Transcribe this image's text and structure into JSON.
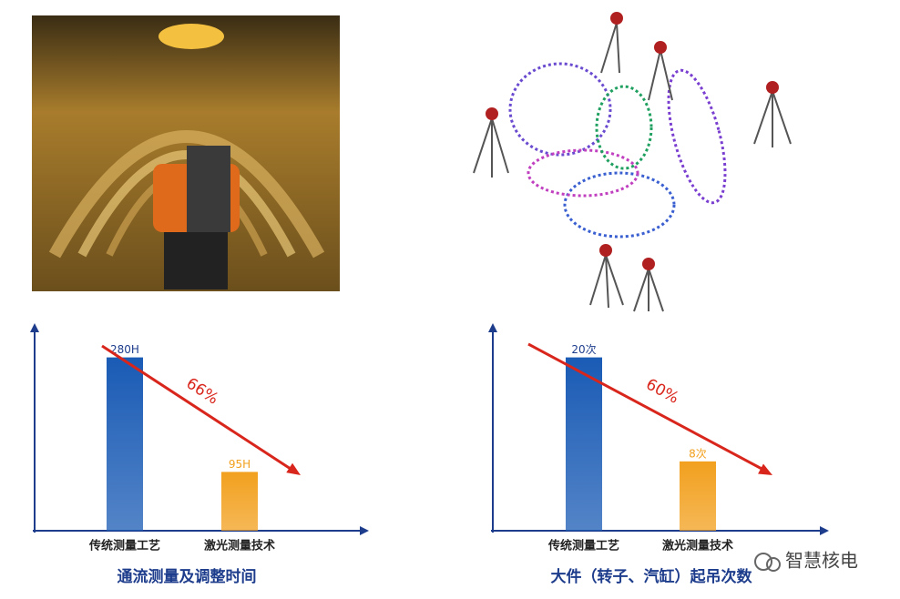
{
  "chart_data": [
    {
      "type": "bar",
      "title": "通流测量及调整时间",
      "categories": [
        "传统测量工艺",
        "激光测量技术"
      ],
      "values": [
        280,
        95
      ],
      "value_labels": [
        "280H",
        "95H"
      ],
      "colors": [
        "#1a5bb5",
        "#f2a01e"
      ],
      "ylim": [
        0,
        350
      ],
      "annotation": "66%"
    },
    {
      "type": "bar",
      "title": "大件（转子、汽缸）起吊次数",
      "categories": [
        "传统测量工艺",
        "激光测量技术"
      ],
      "values": [
        20,
        8
      ],
      "value_labels": [
        "20次",
        "8次"
      ],
      "colors": [
        "#1a5bb5",
        "#f2a01e"
      ],
      "ylim": [
        0,
        25
      ],
      "annotation": "60%"
    }
  ],
  "watermark": "智慧核电"
}
